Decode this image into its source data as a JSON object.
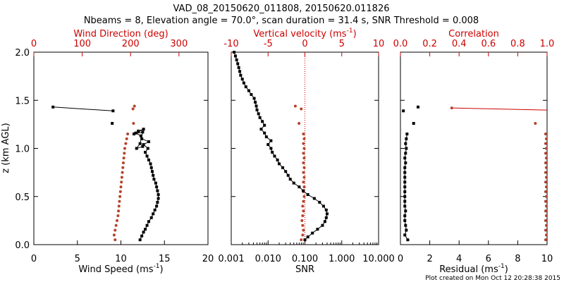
{
  "title_line1": "VAD_08_20150620_011808, 20150620.011826",
  "title_line2": "Nbeams = 8, Elevation angle = 70.0°, scan duration = 31.4 s, SNR Threshold = 0.008",
  "footer": "Plot created on Mon Oct 12 20:28:38 2015",
  "colors": {
    "black": "#000000",
    "red": "#cc0000",
    "marker_red": "#b5432a"
  },
  "chart_data": [
    {
      "type": "scatter",
      "panel": "wind",
      "ylabel": "z (km AGL)",
      "ylim": [
        0,
        2
      ],
      "yticks": [
        "0.0",
        "0.5",
        "1.0",
        "1.5",
        "2.0"
      ],
      "bottom_axis": {
        "label": "Wind Speed (ms",
        "unit_exp": "-1",
        "label_end": ")",
        "range": [
          0,
          20
        ],
        "ticks": [
          "0",
          "5",
          "10",
          "15",
          "20"
        ]
      },
      "top_axis": {
        "label": "Wind Direction (deg)",
        "range": [
          0,
          360
        ],
        "ticks": [
          "0",
          "100",
          "200",
          "300"
        ]
      },
      "series": [
        {
          "axis": "bottom",
          "values": [
            [
              12.2,
              0.05
            ],
            [
              12.4,
              0.09
            ],
            [
              12.6,
              0.13
            ],
            [
              12.8,
              0.16
            ],
            [
              13.0,
              0.2
            ],
            [
              13.2,
              0.24
            ],
            [
              13.5,
              0.28
            ],
            [
              13.7,
              0.32
            ],
            [
              13.9,
              0.36
            ],
            [
              14.1,
              0.4
            ],
            [
              14.2,
              0.44
            ],
            [
              14.3,
              0.48
            ],
            [
              14.3,
              0.52
            ],
            [
              14.2,
              0.56
            ],
            [
              14.1,
              0.6
            ],
            [
              14.0,
              0.64
            ],
            [
              13.8,
              0.68
            ],
            [
              13.7,
              0.72
            ],
            [
              13.6,
              0.76
            ],
            [
              13.5,
              0.8
            ],
            [
              13.4,
              0.84
            ],
            [
              13.2,
              0.88
            ],
            [
              13.0,
              0.92
            ],
            [
              12.8,
              0.96
            ],
            [
              13.1,
              1.0
            ],
            [
              12.6,
              1.04
            ],
            [
              13.2,
              1.07
            ],
            [
              12.4,
              1.1
            ],
            [
              12.3,
              1.13
            ],
            [
              11.7,
              1.16
            ],
            [
              12.0,
              1.18
            ],
            [
              12.6,
              1.2
            ],
            [
              11.5,
              1.15
            ],
            [
              12.5,
              1.17
            ],
            [
              12.2,
              1.05
            ],
            [
              11.8,
              1.0
            ],
            [
              12.5,
              1.02
            ]
          ],
          "points": [
            [
              9.1,
              1.39
            ],
            [
              2.2,
              1.43
            ],
            [
              9.0,
              1.26
            ]
          ]
        },
        {
          "axis": "top",
          "values": [
            [
              168,
              0.05
            ],
            [
              166,
              0.1
            ],
            [
              168,
              0.15
            ],
            [
              170,
              0.2
            ],
            [
              172,
              0.25
            ],
            [
              174,
              0.3
            ],
            [
              175,
              0.35
            ],
            [
              176,
              0.4
            ],
            [
              177,
              0.45
            ],
            [
              178,
              0.5
            ],
            [
              179,
              0.55
            ],
            [
              180,
              0.6
            ],
            [
              181,
              0.65
            ],
            [
              182,
              0.7
            ],
            [
              183,
              0.75
            ],
            [
              184,
              0.8
            ],
            [
              185,
              0.85
            ],
            [
              186,
              0.9
            ],
            [
              187,
              0.95
            ],
            [
              188,
              1.0
            ],
            [
              190,
              1.05
            ],
            [
              192,
              1.1
            ],
            [
              194,
              1.15
            ]
          ],
          "points": [
            [
              205,
              1.41
            ],
            [
              208,
              1.44
            ],
            [
              206,
              1.26
            ]
          ]
        }
      ]
    },
    {
      "type": "scatter",
      "panel": "vertical",
      "bottom_axis": {
        "label": "SNR",
        "scale": "log",
        "range": [
          0.001,
          10
        ],
        "ticks": [
          "0.001",
          "0.010",
          "0.100",
          "1.000",
          "10.000"
        ]
      },
      "top_axis": {
        "label": "Vertical velocity (ms",
        "unit_exp": "-1",
        "label_end": ")",
        "range": [
          -10,
          10
        ],
        "ticks": [
          "-10",
          "-5",
          "0",
          "5",
          "10"
        ]
      },
      "series": [
        {
          "axis": "top",
          "values": [
            [
              -0.5,
              0.05
            ],
            [
              -0.3,
              0.1
            ],
            [
              -0.2,
              0.15
            ],
            [
              -0.3,
              0.2
            ],
            [
              -0.4,
              0.25
            ],
            [
              -0.3,
              0.3
            ],
            [
              -0.2,
              0.35
            ],
            [
              -0.3,
              0.4
            ],
            [
              -0.2,
              0.45
            ],
            [
              -0.1,
              0.5
            ],
            [
              -0.2,
              0.55
            ],
            [
              -0.1,
              0.6
            ],
            [
              -0.2,
              0.65
            ],
            [
              -0.1,
              0.7
            ],
            [
              -0.2,
              0.75
            ],
            [
              -0.1,
              0.8
            ],
            [
              -0.2,
              0.85
            ],
            [
              -0.1,
              0.9
            ],
            [
              -0.2,
              0.95
            ],
            [
              -0.1,
              1.0
            ],
            [
              -0.2,
              1.05
            ],
            [
              -0.1,
              1.1
            ],
            [
              -0.2,
              1.15
            ]
          ],
          "points": [
            [
              -0.5,
              1.41
            ],
            [
              -1.3,
              1.44
            ],
            [
              -0.8,
              1.26
            ]
          ]
        },
        {
          "axis": "bottom",
          "values": [
            [
              0.1,
              0.05
            ],
            [
              0.12,
              0.08
            ],
            [
              0.16,
              0.12
            ],
            [
              0.22,
              0.16
            ],
            [
              0.3,
              0.2
            ],
            [
              0.35,
              0.24
            ],
            [
              0.38,
              0.28
            ],
            [
              0.4,
              0.32
            ],
            [
              0.38,
              0.36
            ],
            [
              0.32,
              0.4
            ],
            [
              0.25,
              0.44
            ],
            [
              0.18,
              0.48
            ],
            [
              0.12,
              0.52
            ],
            [
              0.09,
              0.56
            ],
            [
              0.07,
              0.6
            ],
            [
              0.05,
              0.64
            ],
            [
              0.04,
              0.68
            ],
            [
              0.035,
              0.72
            ],
            [
              0.03,
              0.76
            ],
            [
              0.025,
              0.8
            ],
            [
              0.02,
              0.84
            ],
            [
              0.018,
              0.88
            ],
            [
              0.015,
              0.92
            ],
            [
              0.013,
              0.96
            ],
            [
              0.012,
              1.0
            ],
            [
              0.01,
              1.04
            ],
            [
              0.012,
              1.08
            ],
            [
              0.009,
              1.12
            ],
            [
              0.008,
              1.16
            ],
            [
              0.0065,
              1.2
            ],
            [
              0.008,
              1.24
            ],
            [
              0.007,
              1.28
            ],
            [
              0.006,
              1.32
            ],
            [
              0.0055,
              1.36
            ],
            [
              0.005,
              1.4
            ],
            [
              0.0048,
              1.44
            ],
            [
              0.0045,
              1.48
            ],
            [
              0.0042,
              1.52
            ],
            [
              0.0035,
              1.56
            ],
            [
              0.003,
              1.6
            ],
            [
              0.0025,
              1.64
            ],
            [
              0.0022,
              1.68
            ],
            [
              0.002,
              1.72
            ],
            [
              0.0018,
              1.76
            ],
            [
              0.0017,
              1.8
            ],
            [
              0.0016,
              1.84
            ],
            [
              0.0015,
              1.88
            ],
            [
              0.0014,
              1.92
            ],
            [
              0.0013,
              1.96
            ],
            [
              0.0012,
              2.0
            ]
          ]
        }
      ]
    },
    {
      "type": "scatter",
      "panel": "residual",
      "bottom_axis": {
        "label": "Residual (ms",
        "unit_exp": "-1",
        "label_end": ")",
        "range": [
          0,
          10
        ],
        "ticks": [
          "0",
          "2",
          "4",
          "6",
          "8",
          "10"
        ]
      },
      "top_axis": {
        "label": "Correlation",
        "range": [
          0,
          1
        ],
        "ticks": [
          "0.0",
          "0.2",
          "0.4",
          "0.6",
          "0.8",
          "1.0"
        ]
      },
      "series": [
        {
          "axis": "top",
          "values": [
            [
              0.99,
              0.05
            ],
            [
              0.995,
              0.1
            ],
            [
              0.99,
              0.15
            ],
            [
              0.995,
              0.2
            ],
            [
              0.99,
              0.25
            ],
            [
              0.995,
              0.3
            ],
            [
              0.99,
              0.35
            ],
            [
              0.995,
              0.4
            ],
            [
              0.99,
              0.45
            ],
            [
              0.995,
              0.5
            ],
            [
              0.99,
              0.55
            ],
            [
              0.995,
              0.6
            ],
            [
              0.99,
              0.65
            ],
            [
              0.995,
              0.7
            ],
            [
              0.99,
              0.75
            ],
            [
              0.995,
              0.8
            ],
            [
              0.99,
              0.85
            ],
            [
              0.995,
              0.9
            ],
            [
              0.99,
              0.95
            ],
            [
              0.995,
              1.0
            ],
            [
              0.99,
              1.05
            ],
            [
              0.995,
              1.1
            ],
            [
              0.99,
              1.15
            ]
          ],
          "points": [
            [
              0.35,
              1.42
            ],
            [
              0.92,
              1.26
            ]
          ]
        },
        {
          "axis": "bottom",
          "values": [
            [
              0.5,
              0.05
            ],
            [
              0.3,
              0.1
            ],
            [
              0.4,
              0.15
            ],
            [
              0.35,
              0.2
            ],
            [
              0.3,
              0.25
            ],
            [
              0.3,
              0.3
            ],
            [
              0.35,
              0.35
            ],
            [
              0.3,
              0.4
            ],
            [
              0.3,
              0.45
            ],
            [
              0.3,
              0.5
            ],
            [
              0.3,
              0.55
            ],
            [
              0.3,
              0.6
            ],
            [
              0.3,
              0.65
            ],
            [
              0.3,
              0.7
            ],
            [
              0.3,
              0.75
            ],
            [
              0.3,
              0.8
            ],
            [
              0.35,
              0.85
            ],
            [
              0.3,
              0.9
            ],
            [
              0.35,
              0.95
            ],
            [
              0.4,
              1.0
            ],
            [
              0.35,
              1.05
            ],
            [
              0.4,
              1.1
            ],
            [
              0.45,
              1.15
            ]
          ],
          "points": [
            [
              1.2,
              1.43
            ],
            [
              0.2,
              1.39
            ],
            [
              0.9,
              1.26
            ]
          ]
        }
      ]
    }
  ]
}
